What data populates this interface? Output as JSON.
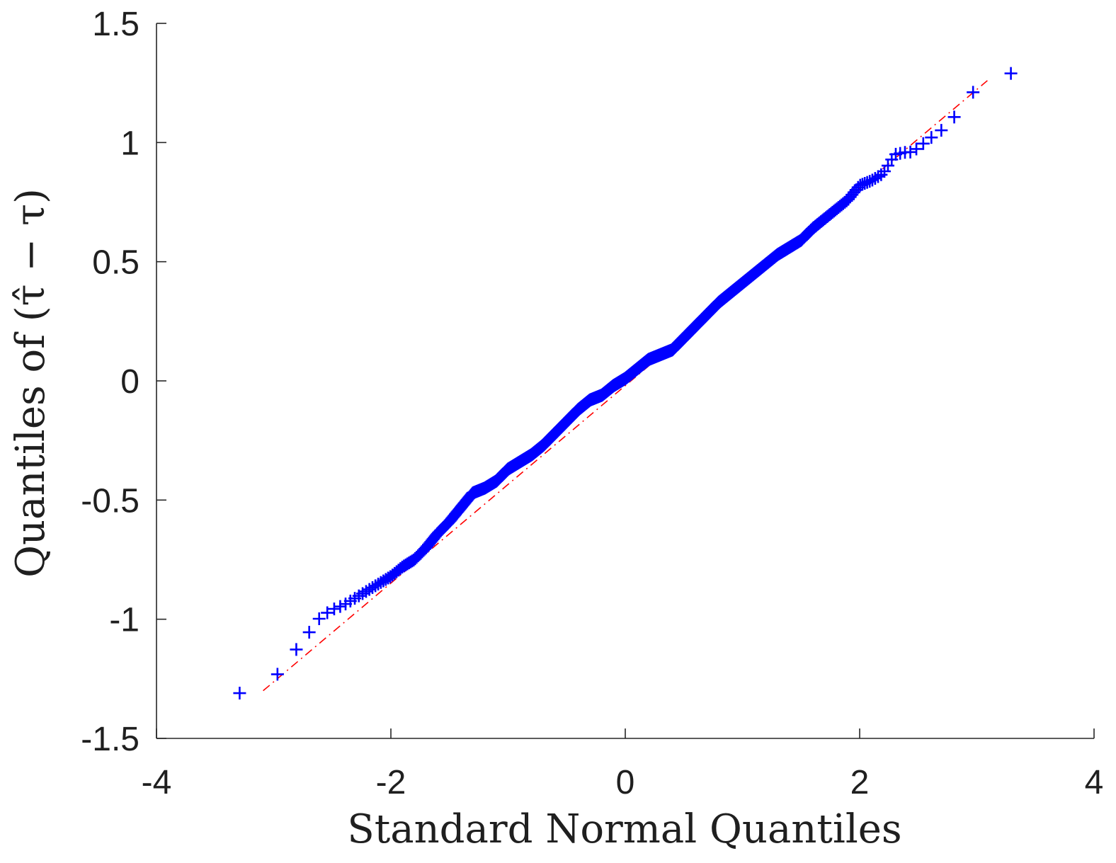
{
  "chart_data": {
    "type": "scatter",
    "xlabel": "Standard Normal Quantiles",
    "ylabel": "Quantiles of (τ̂ − τ)",
    "xlim": [
      -4,
      4
    ],
    "ylim": [
      -1.5,
      1.5
    ],
    "xticks": [
      "-4",
      "-2",
      "0",
      "2",
      "4"
    ],
    "yticks": [
      "-1.5",
      "-1",
      "-0.5",
      "0",
      "0.5",
      "1",
      "1.5"
    ],
    "grid": false,
    "box": "left-bottom",
    "marker_color": "#0000ff",
    "line_color": "#ff0000",
    "reference_line": {
      "x": [
        -3.09,
        3.09
      ],
      "y": [
        -1.3,
        1.26
      ]
    },
    "quantile_curve": {
      "x": [
        -3.09,
        -2.75,
        -2.6,
        -2.5,
        -2.4,
        -2.3,
        -2.2,
        -2.1,
        -2.0,
        -1.9,
        -1.8,
        -1.7,
        -1.6,
        -1.5,
        -1.4,
        -1.3,
        -1.2,
        -1.1,
        -1.0,
        -0.9,
        -0.8,
        -0.7,
        -0.6,
        -0.5,
        -0.4,
        -0.3,
        -0.2,
        -0.1,
        0.0,
        0.1,
        0.2,
        0.3,
        0.4,
        0.5,
        0.6,
        0.7,
        0.8,
        0.9,
        1.0,
        1.1,
        1.2,
        1.3,
        1.4,
        1.5,
        1.6,
        1.7,
        1.8,
        1.9,
        2.0,
        2.1,
        2.2,
        2.3,
        2.4,
        2.45,
        2.58,
        2.75,
        3.09
      ],
      "y": [
        -1.31,
        -1.09,
        -0.99,
        -0.96,
        -0.94,
        -0.91,
        -0.88,
        -0.85,
        -0.82,
        -0.78,
        -0.75,
        -0.7,
        -0.64,
        -0.59,
        -0.53,
        -0.47,
        -0.45,
        -0.42,
        -0.37,
        -0.34,
        -0.31,
        -0.27,
        -0.22,
        -0.17,
        -0.12,
        -0.08,
        -0.06,
        -0.02,
        0.01,
        0.05,
        0.09,
        0.11,
        0.13,
        0.18,
        0.23,
        0.28,
        0.33,
        0.37,
        0.41,
        0.45,
        0.49,
        0.53,
        0.56,
        0.59,
        0.64,
        0.68,
        0.72,
        0.76,
        0.82,
        0.84,
        0.87,
        0.95,
        0.96,
        0.96,
        1.01,
        1.07,
        1.29
      ]
    }
  }
}
